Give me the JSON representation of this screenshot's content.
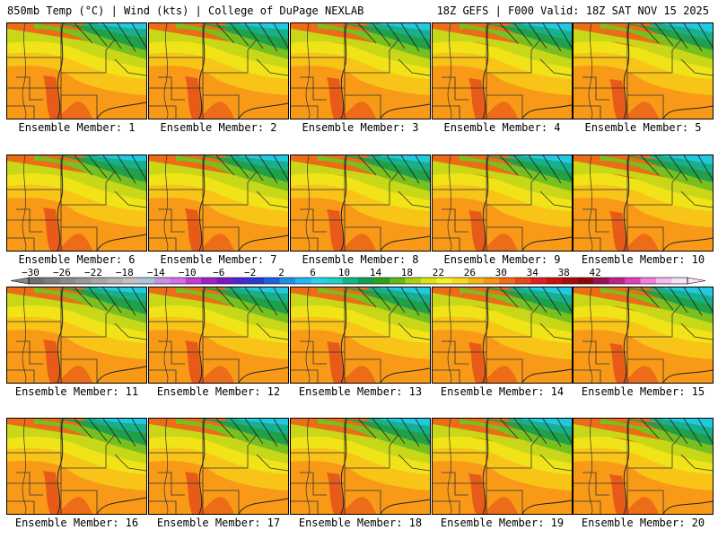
{
  "header": {
    "left": "850mb Temp (°C) | Wind (kts) | College of DuPage NEXLAB",
    "right": "18Z GEFS | F000 Valid: 18Z SAT NOV 15 2025"
  },
  "panel_label_prefix": "Ensemble Member: ",
  "panels": [
    {
      "member": "1"
    },
    {
      "member": "2"
    },
    {
      "member": "3"
    },
    {
      "member": "4"
    },
    {
      "member": "5"
    },
    {
      "member": "6"
    },
    {
      "member": "7"
    },
    {
      "member": "8"
    },
    {
      "member": "9"
    },
    {
      "member": "10"
    },
    {
      "member": "11"
    },
    {
      "member": "12"
    },
    {
      "member": "13"
    },
    {
      "member": "14"
    },
    {
      "member": "15"
    },
    {
      "member": "16"
    },
    {
      "member": "17"
    },
    {
      "member": "18"
    },
    {
      "member": "19"
    },
    {
      "member": "20"
    }
  ],
  "colorbar": {
    "tick_labels": [
      "-30",
      "-26",
      "-22",
      "-18",
      "-14",
      "-10",
      "-6",
      "-2",
      "2",
      "6",
      "10",
      "14",
      "18",
      "22",
      "26",
      "30",
      "34",
      "38",
      "42"
    ],
    "colors": [
      "#6f6f6f",
      "#7d7d7d",
      "#8b8b8b",
      "#999999",
      "#a7a7a7",
      "#b5b5b5",
      "#c3c3c3",
      "#a9c4dc",
      "#c790e6",
      "#d46ee8",
      "#c43ed6",
      "#a020c8",
      "#7a18c4",
      "#4a2ad0",
      "#2a3ad8",
      "#1f5fe0",
      "#1f8ee8",
      "#22b8f0",
      "#2ad2e8",
      "#20d0c0",
      "#12b48a",
      "#10a050",
      "#2aa020",
      "#62b818",
      "#a8d018",
      "#e0e018",
      "#f8f020",
      "#f8d820",
      "#f8b418",
      "#f89418",
      "#f06c18",
      "#e84818",
      "#e02020",
      "#c81010",
      "#a80c0c",
      "#8c0808",
      "#9c1050",
      "#c0208c",
      "#e040c0",
      "#f080e0",
      "#f8b8f0",
      "#f8e0f8"
    ]
  },
  "map_colors": {
    "cyan": "#22c8e0",
    "teal": "#18b08c",
    "green": "#20a048",
    "lightgreen": "#78c020",
    "yellowgreen": "#c8d818",
    "yellow": "#f0e418",
    "gold": "#f8c418",
    "orange": "#f89a18",
    "darkorange": "#ec6c18"
  }
}
